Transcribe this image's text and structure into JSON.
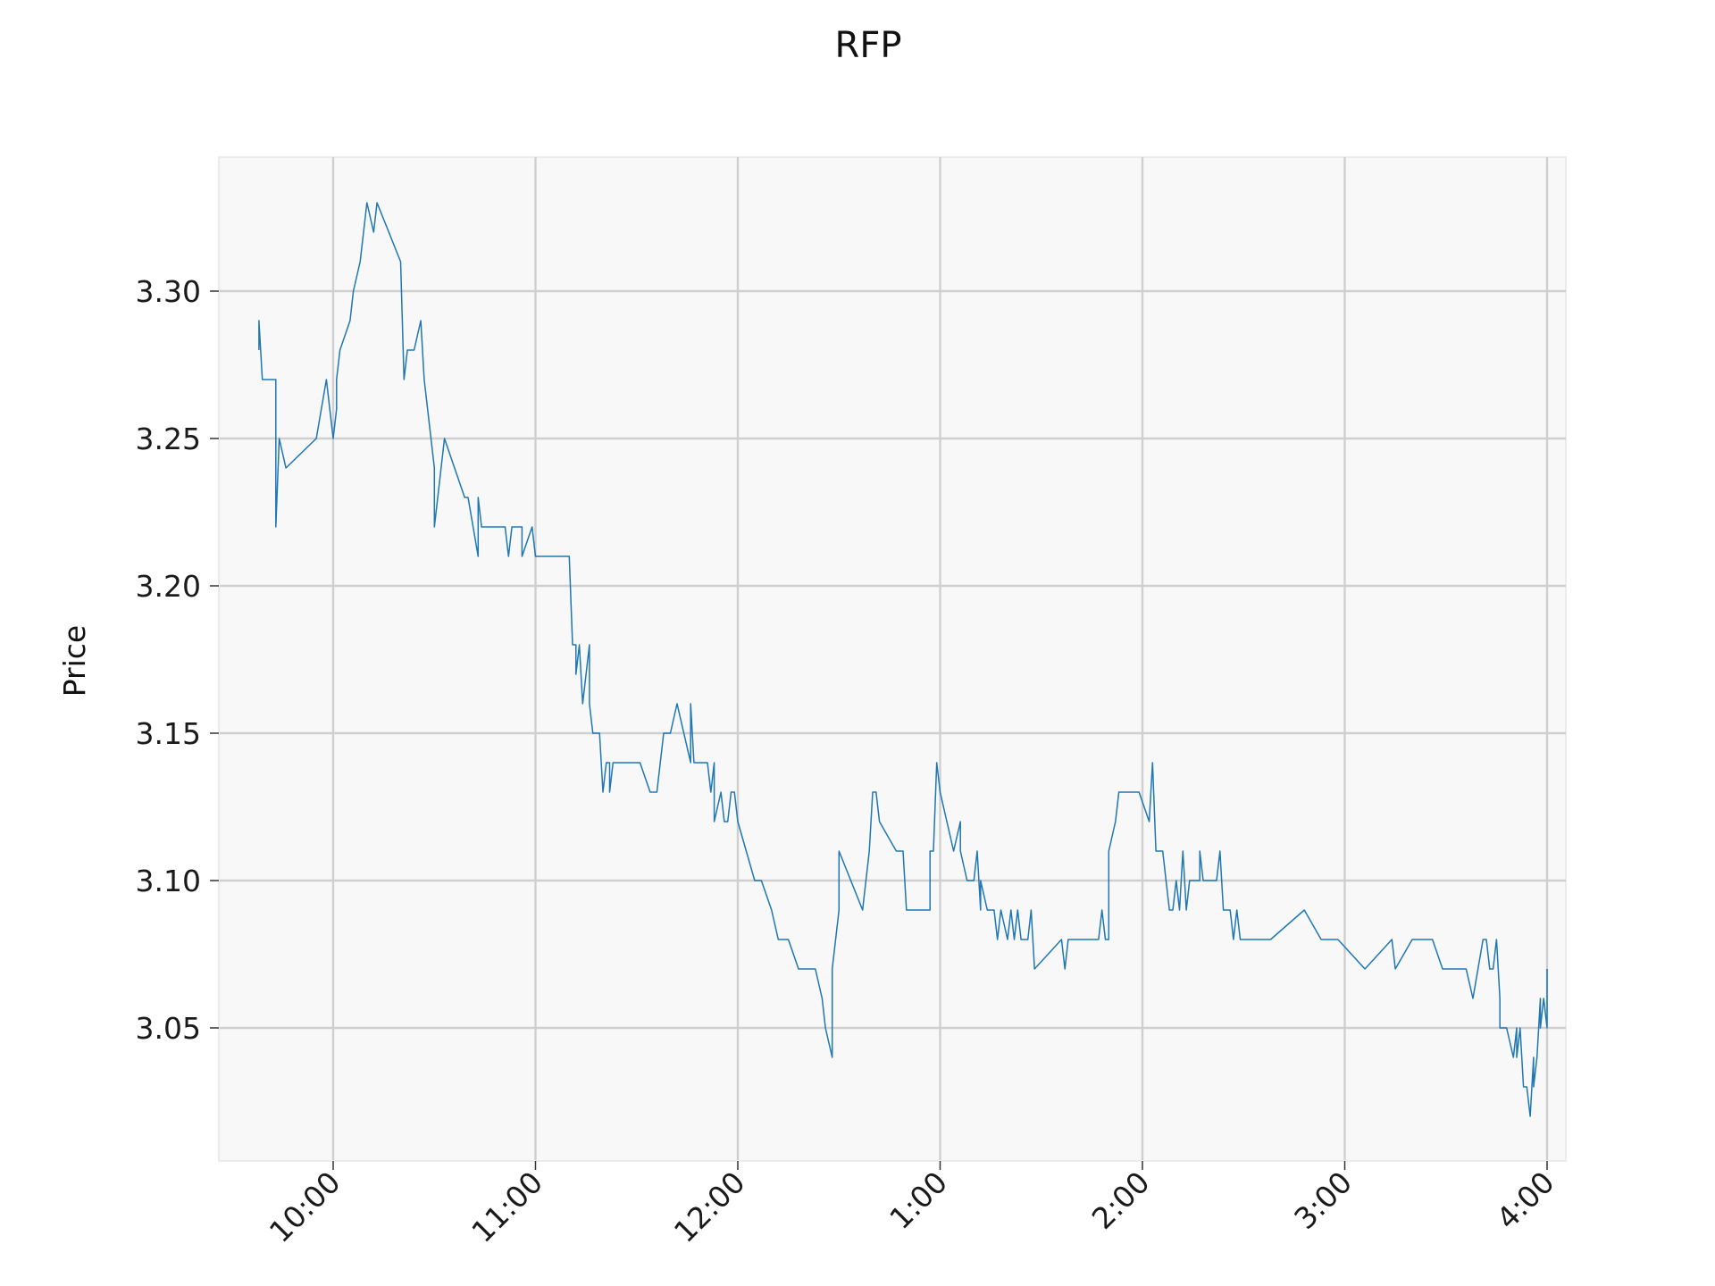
{
  "chart_data": {
    "type": "line",
    "title": "RFP",
    "xlabel": "",
    "ylabel": "Price",
    "x_unit": "time of day",
    "x_range": [
      "9:35",
      "4:00"
    ],
    "y_range": [
      3.007,
      3.347
    ],
    "x_ticks": [
      {
        "value": "10:00",
        "label": "10:00"
      },
      {
        "value": "11:00",
        "label": "11:00"
      },
      {
        "value": "12:00",
        "label": "12:00"
      },
      {
        "value": "13:00",
        "label": "1:00"
      },
      {
        "value": "14:00",
        "label": "2:00"
      },
      {
        "value": "15:00",
        "label": "3:00"
      },
      {
        "value": "16:00",
        "label": "4:00"
      }
    ],
    "y_ticks": [
      {
        "value": 3.05,
        "label": "3.05"
      },
      {
        "value": 3.1,
        "label": "3.10"
      },
      {
        "value": 3.15,
        "label": "3.15"
      },
      {
        "value": 3.2,
        "label": "3.20"
      },
      {
        "value": 3.25,
        "label": "3.25"
      },
      {
        "value": 3.3,
        "label": "3.30"
      }
    ],
    "grid": true,
    "background": "#f8f8f8",
    "grid_color": "#cfcfcf",
    "series": [
      {
        "color": "#1f77b4",
        "points": [
          [
            "9:38",
            3.28
          ],
          [
            "9:38",
            3.29
          ],
          [
            "9:39",
            3.27
          ],
          [
            "9:43",
            3.27
          ],
          [
            "9:43",
            3.22
          ],
          [
            "9:44",
            3.25
          ],
          [
            "9:46",
            3.24
          ],
          [
            "9:55",
            3.25
          ],
          [
            "9:58",
            3.27
          ],
          [
            "10:00",
            3.25
          ],
          [
            "10:01",
            3.26
          ],
          [
            "10:01",
            3.27
          ],
          [
            "10:02",
            3.28
          ],
          [
            "10:05",
            3.29
          ],
          [
            "10:06",
            3.3
          ],
          [
            "10:08",
            3.31
          ],
          [
            "10:10",
            3.33
          ],
          [
            "10:12",
            3.32
          ],
          [
            "10:13",
            3.33
          ],
          [
            "10:20",
            3.31
          ],
          [
            "10:21",
            3.27
          ],
          [
            "10:22",
            3.28
          ],
          [
            "10:24",
            3.28
          ],
          [
            "10:26",
            3.29
          ],
          [
            "10:27",
            3.27
          ],
          [
            "10:29",
            3.25
          ],
          [
            "10:30",
            3.24
          ],
          [
            "10:30",
            3.22
          ],
          [
            "10:33",
            3.25
          ],
          [
            "10:39",
            3.23
          ],
          [
            "10:40",
            3.23
          ],
          [
            "10:43",
            3.21
          ],
          [
            "10:43",
            3.23
          ],
          [
            "10:44",
            3.22
          ],
          [
            "10:51",
            3.22
          ],
          [
            "10:52",
            3.21
          ],
          [
            "10:53",
            3.22
          ],
          [
            "10:56",
            3.22
          ],
          [
            "10:56",
            3.21
          ],
          [
            "10:59",
            3.22
          ],
          [
            "11:00",
            3.21
          ],
          [
            "11:05",
            3.21
          ],
          [
            "11:10",
            3.21
          ],
          [
            "11:11",
            3.18
          ],
          [
            "11:12",
            3.18
          ],
          [
            "11:12",
            3.17
          ],
          [
            "11:13",
            3.18
          ],
          [
            "11:14",
            3.16
          ],
          [
            "11:15",
            3.17
          ],
          [
            "11:16",
            3.18
          ],
          [
            "11:16",
            3.16
          ],
          [
            "11:17",
            3.15
          ],
          [
            "11:19",
            3.15
          ],
          [
            "11:20",
            3.13
          ],
          [
            "11:21",
            3.14
          ],
          [
            "11:22",
            3.14
          ],
          [
            "11:22",
            3.13
          ],
          [
            "11:23",
            3.14
          ],
          [
            "11:31",
            3.14
          ],
          [
            "11:34",
            3.13
          ],
          [
            "11:36",
            3.13
          ],
          [
            "11:38",
            3.15
          ],
          [
            "11:40",
            3.15
          ],
          [
            "11:42",
            3.16
          ],
          [
            "11:46",
            3.14
          ],
          [
            "11:46",
            3.16
          ],
          [
            "11:47",
            3.14
          ],
          [
            "11:51",
            3.14
          ],
          [
            "11:52",
            3.13
          ],
          [
            "11:53",
            3.14
          ],
          [
            "11:53",
            3.12
          ],
          [
            "11:55",
            3.13
          ],
          [
            "11:56",
            3.12
          ],
          [
            "11:57",
            3.12
          ],
          [
            "11:58",
            3.13
          ],
          [
            "11:59",
            3.13
          ],
          [
            "12:00",
            3.12
          ],
          [
            "12:05",
            3.1
          ],
          [
            "12:07",
            3.1
          ],
          [
            "12:10",
            3.09
          ],
          [
            "12:12",
            3.08
          ],
          [
            "12:15",
            3.08
          ],
          [
            "12:18",
            3.07
          ],
          [
            "12:23",
            3.07
          ],
          [
            "12:25",
            3.06
          ],
          [
            "12:26",
            3.05
          ],
          [
            "12:28",
            3.04
          ],
          [
            "12:28",
            3.07
          ],
          [
            "12:30",
            3.09
          ],
          [
            "12:30",
            3.11
          ],
          [
            "12:37",
            3.09
          ],
          [
            "12:39",
            3.11
          ],
          [
            "12:40",
            3.13
          ],
          [
            "12:41",
            3.13
          ],
          [
            "12:42",
            3.12
          ],
          [
            "12:47",
            3.11
          ],
          [
            "12:49",
            3.11
          ],
          [
            "12:50",
            3.09
          ],
          [
            "12:57",
            3.09
          ],
          [
            "12:57",
            3.11
          ],
          [
            "12:58",
            3.11
          ],
          [
            "12:59",
            3.14
          ],
          [
            "13:00",
            3.13
          ],
          [
            "13:04",
            3.11
          ],
          [
            "13:06",
            3.12
          ],
          [
            "13:06",
            3.11
          ],
          [
            "13:08",
            3.1
          ],
          [
            "13:10",
            3.1
          ],
          [
            "13:11",
            3.11
          ],
          [
            "13:12",
            3.09
          ],
          [
            "13:12",
            3.1
          ],
          [
            "13:14",
            3.09
          ],
          [
            "13:16",
            3.09
          ],
          [
            "13:17",
            3.08
          ],
          [
            "13:18",
            3.09
          ],
          [
            "13:20",
            3.08
          ],
          [
            "13:21",
            3.09
          ],
          [
            "13:22",
            3.08
          ],
          [
            "13:23",
            3.09
          ],
          [
            "13:24",
            3.08
          ],
          [
            "13:26",
            3.08
          ],
          [
            "13:27",
            3.09
          ],
          [
            "13:28",
            3.07
          ],
          [
            "13:36",
            3.08
          ],
          [
            "13:37",
            3.07
          ],
          [
            "13:38",
            3.08
          ],
          [
            "13:47",
            3.08
          ],
          [
            "13:48",
            3.09
          ],
          [
            "13:49",
            3.08
          ],
          [
            "13:50",
            3.08
          ],
          [
            "13:50",
            3.09
          ],
          [
            "13:50",
            3.11
          ],
          [
            "13:52",
            3.12
          ],
          [
            "13:53",
            3.13
          ],
          [
            "13:59",
            3.13
          ],
          [
            "14:02",
            3.12
          ],
          [
            "14:03",
            3.14
          ],
          [
            "14:04",
            3.11
          ],
          [
            "14:06",
            3.11
          ],
          [
            "14:07",
            3.1
          ],
          [
            "14:08",
            3.09
          ],
          [
            "14:09",
            3.09
          ],
          [
            "14:10",
            3.1
          ],
          [
            "14:11",
            3.09
          ],
          [
            "14:12",
            3.11
          ],
          [
            "14:13",
            3.09
          ],
          [
            "14:14",
            3.1
          ],
          [
            "14:17",
            3.1
          ],
          [
            "14:17",
            3.11
          ],
          [
            "14:18",
            3.1
          ],
          [
            "14:22",
            3.1
          ],
          [
            "14:23",
            3.11
          ],
          [
            "14:24",
            3.09
          ],
          [
            "14:26",
            3.09
          ],
          [
            "14:27",
            3.08
          ],
          [
            "14:28",
            3.09
          ],
          [
            "14:29",
            3.08
          ],
          [
            "14:30",
            3.08
          ],
          [
            "14:38",
            3.08
          ],
          [
            "14:48",
            3.09
          ],
          [
            "14:53",
            3.08
          ],
          [
            "14:58",
            3.08
          ],
          [
            "15:06",
            3.07
          ],
          [
            "15:14",
            3.08
          ],
          [
            "15:15",
            3.07
          ],
          [
            "15:20",
            3.08
          ],
          [
            "15:26",
            3.08
          ],
          [
            "15:29",
            3.07
          ],
          [
            "15:36",
            3.07
          ],
          [
            "15:38",
            3.06
          ],
          [
            "15:41",
            3.08
          ],
          [
            "15:42",
            3.08
          ],
          [
            "15:43",
            3.07
          ],
          [
            "15:44",
            3.07
          ],
          [
            "15:45",
            3.08
          ],
          [
            "15:46",
            3.06
          ],
          [
            "15:46",
            3.05
          ],
          [
            "15:48",
            3.05
          ],
          [
            "15:50",
            3.04
          ],
          [
            "15:51",
            3.05
          ],
          [
            "15:51",
            3.04
          ],
          [
            "15:52",
            3.05
          ],
          [
            "15:53",
            3.03
          ],
          [
            "15:54",
            3.03
          ],
          [
            "15:55",
            3.02
          ],
          [
            "15:56",
            3.04
          ],
          [
            "15:56",
            3.03
          ],
          [
            "15:57",
            3.04
          ],
          [
            "15:58",
            3.06
          ],
          [
            "15:58",
            3.05
          ],
          [
            "15:59",
            3.06
          ],
          [
            "16:00",
            3.05
          ],
          [
            "16:00",
            3.07
          ]
        ]
      }
    ]
  }
}
